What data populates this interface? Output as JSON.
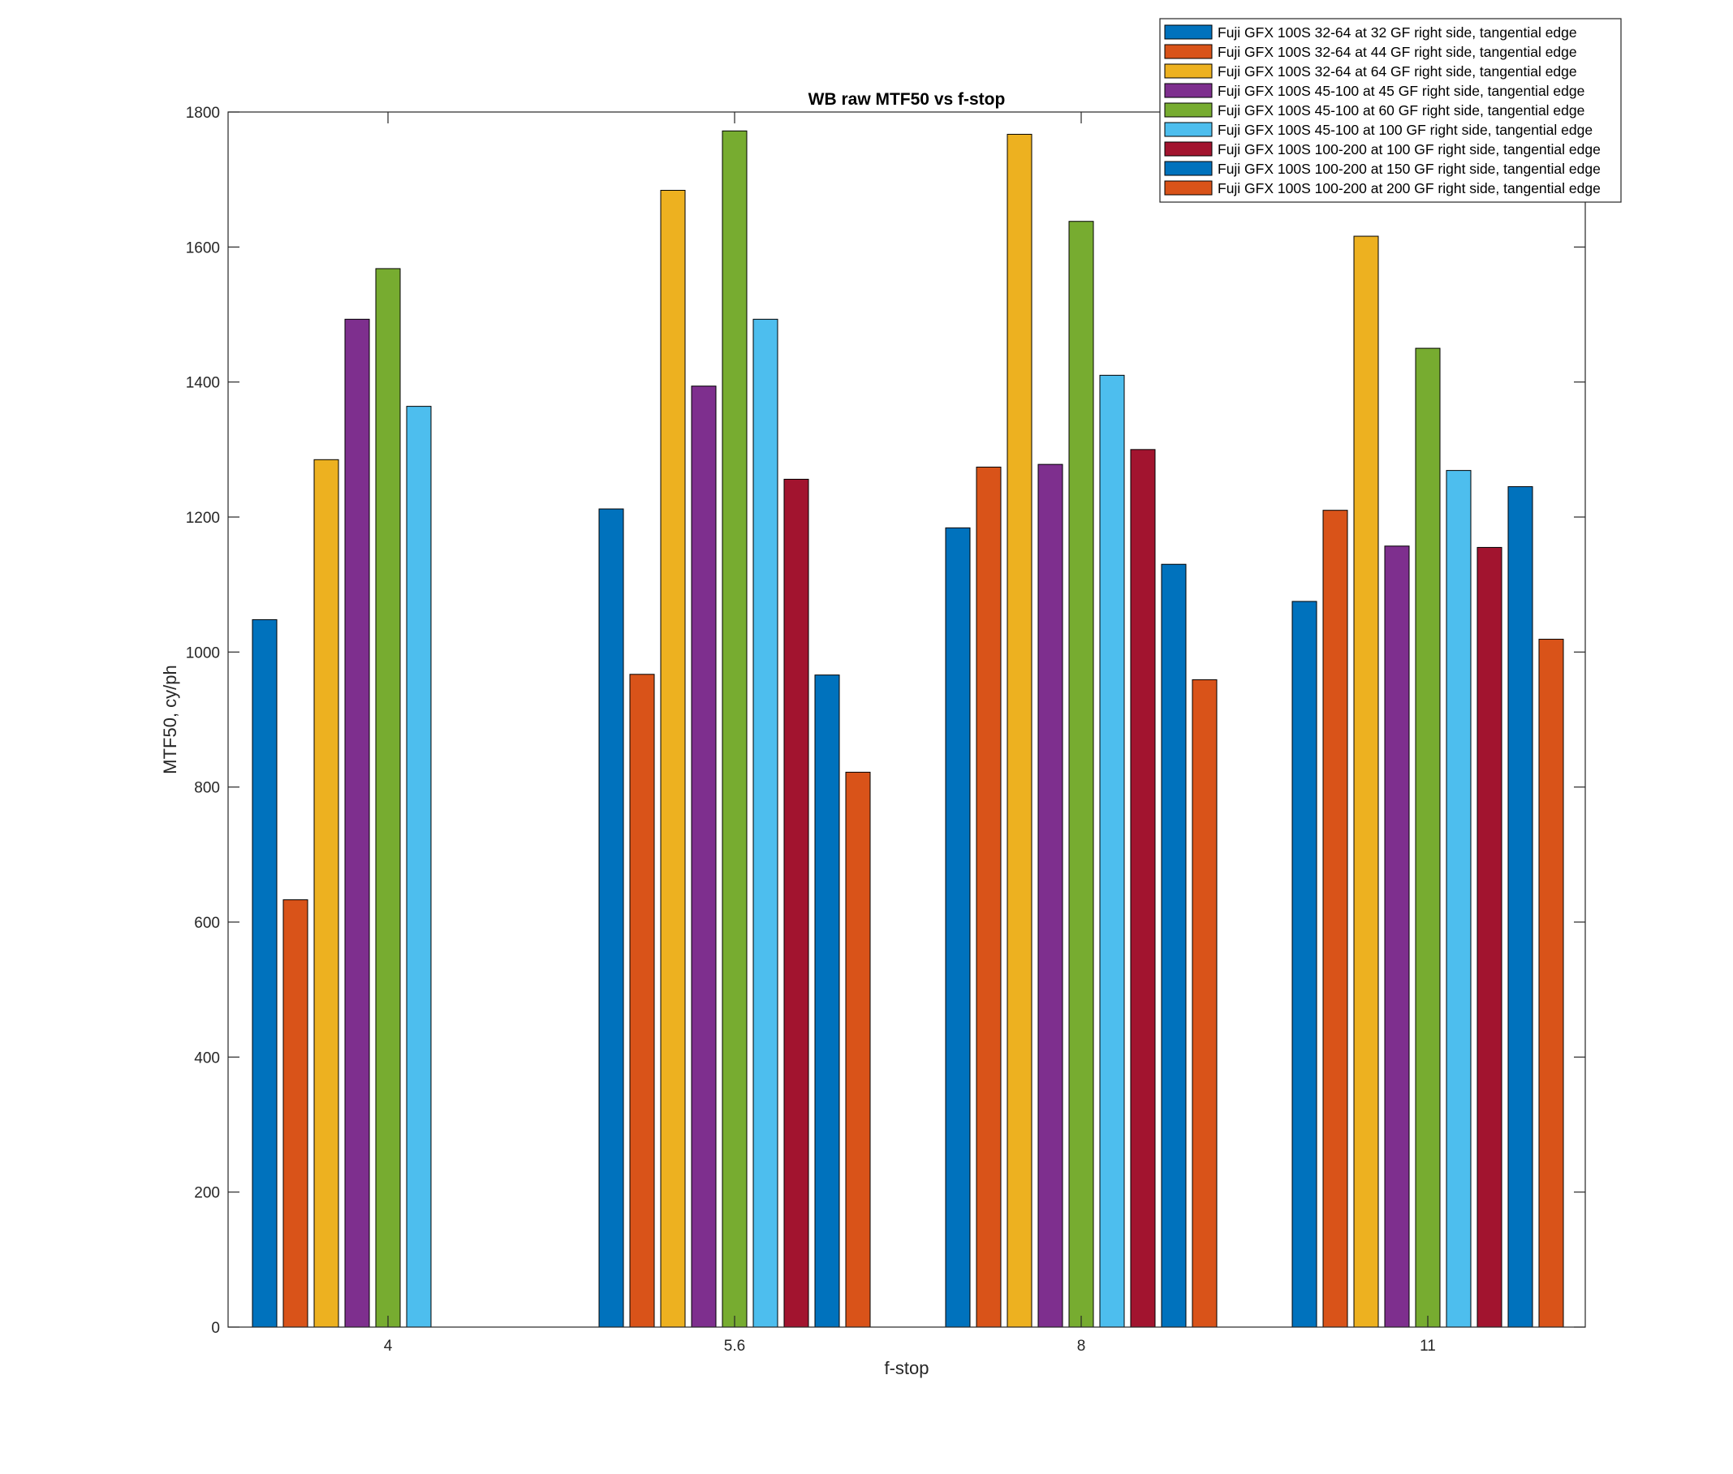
{
  "chart_data": {
    "type": "bar",
    "title": "WB raw MTF50 vs f-stop",
    "xlabel": "f-stop",
    "ylabel": "MTF50, cy/ph",
    "categories": [
      "4",
      "5.6",
      "8",
      "11"
    ],
    "ylim": [
      0,
      1800
    ],
    "yticks": [
      0,
      200,
      400,
      600,
      800,
      1000,
      1200,
      1400,
      1600,
      1800
    ],
    "grid": false,
    "legend_position": "top-right",
    "series": [
      {
        "name": "Fuji GFX 100S 32-64 at 32 GF right side, tangential edge",
        "color": "#0072BD",
        "values": [
          1048,
          1212,
          1184,
          1075
        ]
      },
      {
        "name": "Fuji GFX 100S 32-64 at 44 GF right side, tangential edge",
        "color": "#D95319",
        "values": [
          633,
          967,
          1274,
          1210
        ]
      },
      {
        "name": "Fuji GFX 100S 32-64 at 64 GF right side, tangential edge",
        "color": "#EDB120",
        "values": [
          1285,
          1684,
          1767,
          1616
        ]
      },
      {
        "name": "Fuji GFX 100S 45-100 at 45 GF right side, tangential edge",
        "color": "#7E2F8E",
        "values": [
          1493,
          1394,
          1278,
          1157
        ]
      },
      {
        "name": "Fuji GFX 100S 45-100 at 60 GF right side, tangential edge",
        "color": "#77AC30",
        "values": [
          1568,
          1772,
          1638,
          1450
        ]
      },
      {
        "name": "Fuji GFX 100S 45-100 at 100 GF right side, tangential edge",
        "color": "#4DBEEE",
        "values": [
          1364,
          1493,
          1410,
          1269
        ]
      },
      {
        "name": "Fuji GFX 100S 100-200 at 100 GF right side, tangential edge",
        "color": "#A2142F",
        "values": [
          null,
          1256,
          1300,
          1155
        ]
      },
      {
        "name": "Fuji GFX 100S 100-200 at 150 GF right side, tangential edge",
        "color": "#0072BD",
        "values": [
          null,
          966,
          1130,
          1245
        ]
      },
      {
        "name": "Fuji GFX 100S 100-200 at 200 GF right side, tangential edge",
        "color": "#D95319",
        "values": [
          null,
          822,
          959,
          1019
        ]
      }
    ]
  }
}
